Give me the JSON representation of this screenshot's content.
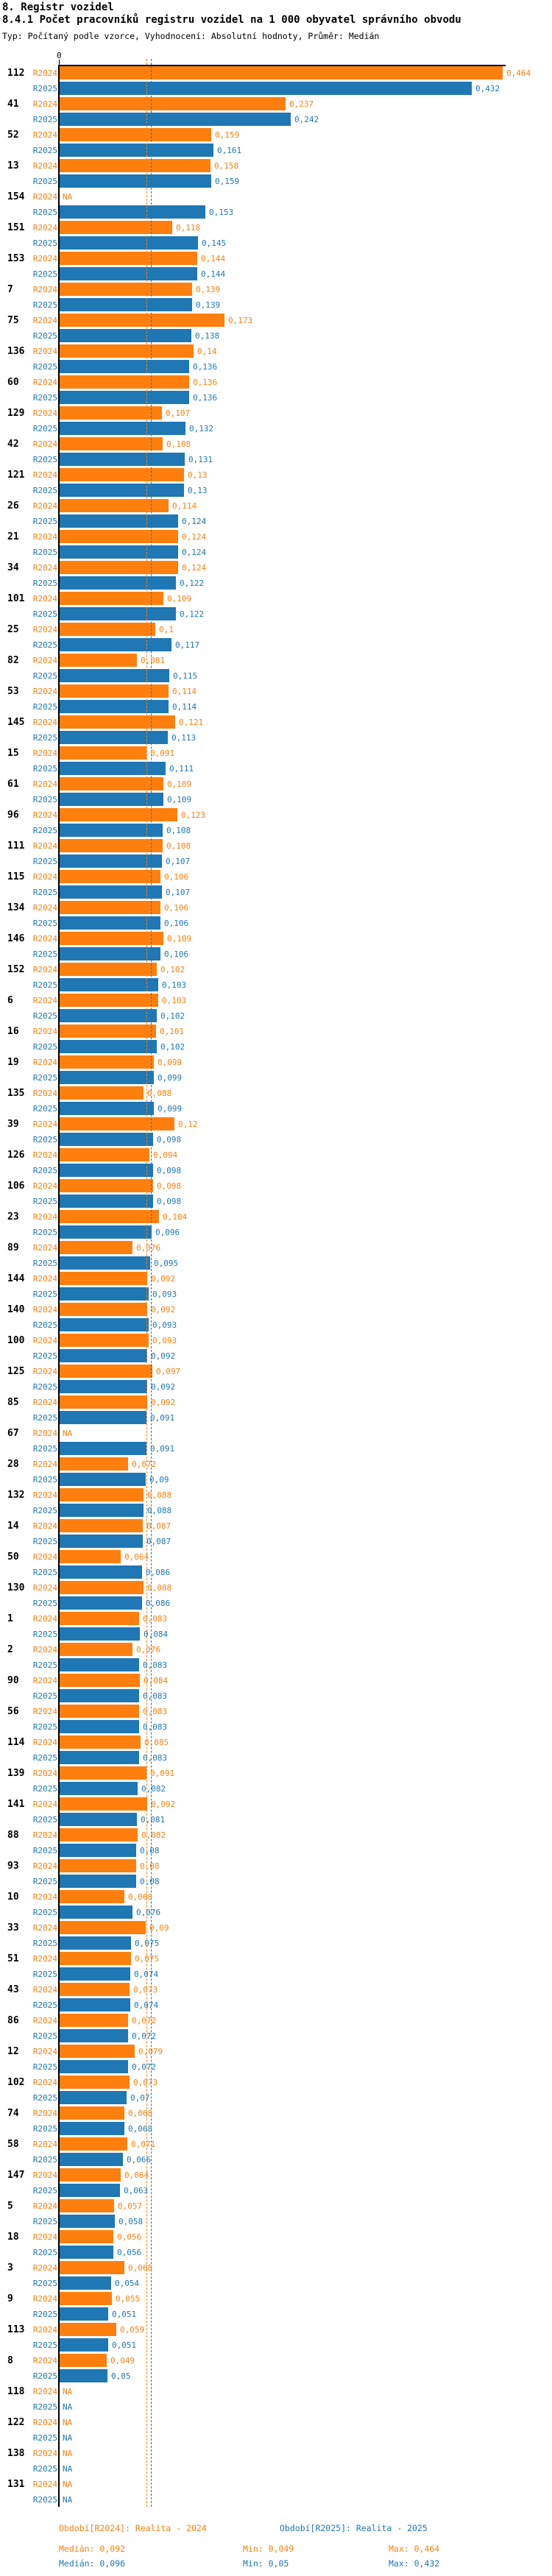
{
  "header": {
    "title": "8. Registr vozidel",
    "subtitle": "8.4.1 Počet pracovníků registru vozidel na 1 000 obyvatel správního obvodu",
    "meta": "Typ: Počítaný podle vzorce, Vyhodnocení: Absolutní hodnoty, Průměr: Medián"
  },
  "axis": {
    "zero_label": "0"
  },
  "colors": {
    "r2024": "#FF7F0E",
    "r2025": "#1F77B4",
    "axis": "#000000"
  },
  "legend": {
    "r2024": {
      "period": "Období[R2024]: Realita - 2024",
      "median": "Medián: 0,092",
      "min": "Min: 0,049",
      "max": "Max: 0,464"
    },
    "r2025": {
      "period": "Období[R2025]: Realita - 2025",
      "median": "Medián: 0,096",
      "min": "Min: 0,05",
      "max": "Max: 0,432"
    }
  },
  "chart_data": {
    "type": "bar",
    "orientation": "horizontal",
    "title": "8.4.1 Počet pracovníků registru vozidel na 1 000 obyvatel správního obvodu",
    "series_labels": [
      "R2024",
      "R2025"
    ],
    "na_label": "NA",
    "xlim": [
      0,
      0.5
    ],
    "medians": {
      "r2024": 0.092,
      "r2025": 0.096
    },
    "stats": {
      "r2024": {
        "median": 0.092,
        "min": 0.049,
        "max": 0.464
      },
      "r2025": {
        "median": 0.096,
        "min": 0.05,
        "max": 0.432
      }
    },
    "rows": [
      {
        "id": "112",
        "r2024": 0.464,
        "r2025": 0.432
      },
      {
        "id": "41",
        "r2024": 0.237,
        "r2025": 0.242
      },
      {
        "id": "52",
        "r2024": 0.159,
        "r2025": 0.161
      },
      {
        "id": "13",
        "r2024": 0.158,
        "r2025": 0.159
      },
      {
        "id": "154",
        "r2024": null,
        "r2025": 0.153
      },
      {
        "id": "151",
        "r2024": 0.118,
        "r2025": 0.145
      },
      {
        "id": "153",
        "r2024": 0.144,
        "r2025": 0.144
      },
      {
        "id": "7",
        "r2024": 0.139,
        "r2025": 0.139
      },
      {
        "id": "75",
        "r2024": 0.173,
        "r2025": 0.138
      },
      {
        "id": "136",
        "r2024": 0.14,
        "r2025": 0.136
      },
      {
        "id": "60",
        "r2024": 0.136,
        "r2025": 0.136
      },
      {
        "id": "129",
        "r2024": 0.107,
        "r2025": 0.132
      },
      {
        "id": "42",
        "r2024": 0.108,
        "r2025": 0.131
      },
      {
        "id": "121",
        "r2024": 0.13,
        "r2025": 0.13
      },
      {
        "id": "26",
        "r2024": 0.114,
        "r2025": 0.124
      },
      {
        "id": "21",
        "r2024": 0.124,
        "r2025": 0.124
      },
      {
        "id": "34",
        "r2024": 0.124,
        "r2025": 0.122
      },
      {
        "id": "101",
        "r2024": 0.109,
        "r2025": 0.122
      },
      {
        "id": "25",
        "r2024": 0.1,
        "r2025": 0.117
      },
      {
        "id": "82",
        "r2024": 0.081,
        "r2025": 0.115
      },
      {
        "id": "53",
        "r2024": 0.114,
        "r2025": 0.114
      },
      {
        "id": "145",
        "r2024": 0.121,
        "r2025": 0.113
      },
      {
        "id": "15",
        "r2024": 0.091,
        "r2025": 0.111
      },
      {
        "id": "61",
        "r2024": 0.109,
        "r2025": 0.109
      },
      {
        "id": "96",
        "r2024": 0.123,
        "r2025": 0.108
      },
      {
        "id": "111",
        "r2024": 0.108,
        "r2025": 0.107
      },
      {
        "id": "115",
        "r2024": 0.106,
        "r2025": 0.107
      },
      {
        "id": "134",
        "r2024": 0.106,
        "r2025": 0.106
      },
      {
        "id": "146",
        "r2024": 0.109,
        "r2025": 0.106
      },
      {
        "id": "152",
        "r2024": 0.102,
        "r2025": 0.103
      },
      {
        "id": "6",
        "r2024": 0.103,
        "r2025": 0.102
      },
      {
        "id": "16",
        "r2024": 0.101,
        "r2025": 0.102
      },
      {
        "id": "19",
        "r2024": 0.099,
        "r2025": 0.099
      },
      {
        "id": "135",
        "r2024": 0.088,
        "r2025": 0.099
      },
      {
        "id": "39",
        "r2024": 0.12,
        "r2025": 0.098
      },
      {
        "id": "126",
        "r2024": 0.094,
        "r2025": 0.098
      },
      {
        "id": "106",
        "r2024": 0.098,
        "r2025": 0.098
      },
      {
        "id": "23",
        "r2024": 0.104,
        "r2025": 0.096
      },
      {
        "id": "89",
        "r2024": 0.076,
        "r2025": 0.095
      },
      {
        "id": "144",
        "r2024": 0.092,
        "r2025": 0.093
      },
      {
        "id": "140",
        "r2024": 0.092,
        "r2025": 0.093
      },
      {
        "id": "100",
        "r2024": 0.093,
        "r2025": 0.092
      },
      {
        "id": "125",
        "r2024": 0.097,
        "r2025": 0.092
      },
      {
        "id": "85",
        "r2024": 0.092,
        "r2025": 0.091
      },
      {
        "id": "67",
        "r2024": null,
        "r2025": 0.091
      },
      {
        "id": "28",
        "r2024": 0.072,
        "r2025": 0.09
      },
      {
        "id": "132",
        "r2024": 0.088,
        "r2025": 0.088
      },
      {
        "id": "14",
        "r2024": 0.087,
        "r2025": 0.087
      },
      {
        "id": "50",
        "r2024": 0.064,
        "r2025": 0.086
      },
      {
        "id": "130",
        "r2024": 0.088,
        "r2025": 0.086
      },
      {
        "id": "1",
        "r2024": 0.083,
        "r2025": 0.084
      },
      {
        "id": "2",
        "r2024": 0.076,
        "r2025": 0.083
      },
      {
        "id": "90",
        "r2024": 0.084,
        "r2025": 0.083
      },
      {
        "id": "56",
        "r2024": 0.083,
        "r2025": 0.083
      },
      {
        "id": "114",
        "r2024": 0.085,
        "r2025": 0.083
      },
      {
        "id": "139",
        "r2024": 0.091,
        "r2025": 0.082
      },
      {
        "id": "141",
        "r2024": 0.092,
        "r2025": 0.081
      },
      {
        "id": "88",
        "r2024": 0.082,
        "r2025": 0.08
      },
      {
        "id": "93",
        "r2024": 0.08,
        "r2025": 0.08
      },
      {
        "id": "10",
        "r2024": 0.068,
        "r2025": 0.076
      },
      {
        "id": "33",
        "r2024": 0.09,
        "r2025": 0.075
      },
      {
        "id": "51",
        "r2024": 0.075,
        "r2025": 0.074
      },
      {
        "id": "43",
        "r2024": 0.073,
        "r2025": 0.074
      },
      {
        "id": "86",
        "r2024": 0.072,
        "r2025": 0.072
      },
      {
        "id": "12",
        "r2024": 0.079,
        "r2025": 0.072
      },
      {
        "id": "102",
        "r2024": 0.073,
        "r2025": 0.07
      },
      {
        "id": "74",
        "r2024": 0.068,
        "r2025": 0.068
      },
      {
        "id": "58",
        "r2024": 0.071,
        "r2025": 0.066
      },
      {
        "id": "147",
        "r2024": 0.064,
        "r2025": 0.063
      },
      {
        "id": "5",
        "r2024": 0.057,
        "r2025": 0.058
      },
      {
        "id": "18",
        "r2024": 0.056,
        "r2025": 0.056
      },
      {
        "id": "3",
        "r2024": 0.068,
        "r2025": 0.054
      },
      {
        "id": "9",
        "r2024": 0.055,
        "r2025": 0.051
      },
      {
        "id": "113",
        "r2024": 0.059,
        "r2025": 0.051
      },
      {
        "id": "8",
        "r2024": 0.049,
        "r2025": 0.05
      },
      {
        "id": "118",
        "r2024": null,
        "r2025": null
      },
      {
        "id": "122",
        "r2024": null,
        "r2025": null
      },
      {
        "id": "138",
        "r2024": null,
        "r2025": null
      },
      {
        "id": "131",
        "r2024": null,
        "r2025": null
      }
    ]
  }
}
